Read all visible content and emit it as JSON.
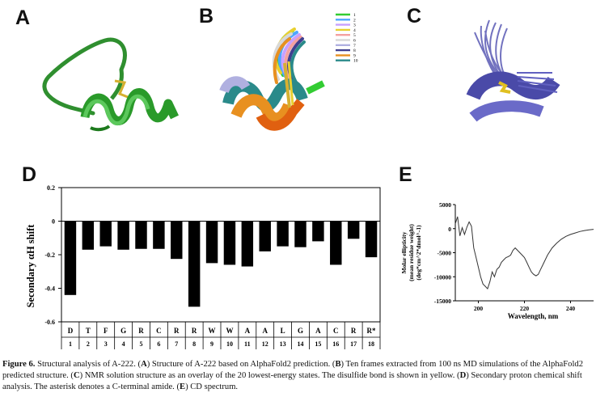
{
  "panels": {
    "a": {
      "letter": "A"
    },
    "b": {
      "letter": "B",
      "legend": [
        "1",
        "2",
        "3",
        "4",
        "5",
        "6",
        "7",
        "8",
        "9",
        "10"
      ],
      "legend_colors": [
        "#33cc33",
        "#4da6ff",
        "#c8a0ff",
        "#e8d030",
        "#f4a0a0",
        "#d8d8d8",
        "#b0b0e0",
        "#404090",
        "#e89020",
        "#2a8a8a"
      ]
    },
    "c": {
      "letter": "C"
    },
    "d": {
      "letter": "D"
    },
    "e": {
      "letter": "E"
    }
  },
  "chart_data": [
    {
      "type": "bar",
      "panel": "D",
      "ylabel": "Secondary αH shift",
      "ylim": [
        -0.6,
        0.2
      ],
      "yticks": [
        "0.2",
        "0",
        "-0.2",
        "-0.4",
        "-0.6"
      ],
      "residues": [
        "D",
        "T",
        "F",
        "G",
        "R",
        "C",
        "R",
        "R",
        "W",
        "W",
        "A",
        "A",
        "L",
        "G",
        "A",
        "C",
        "R",
        "R*"
      ],
      "positions": [
        "1",
        "2",
        "3",
        "4",
        "5",
        "6",
        "7",
        "8",
        "9",
        "10",
        "11",
        "12",
        "13",
        "14",
        "15",
        "16",
        "17",
        "18"
      ],
      "values": [
        -0.44,
        -0.17,
        -0.15,
        -0.17,
        -0.165,
        -0.165,
        -0.225,
        -0.51,
        -0.25,
        -0.26,
        -0.27,
        -0.18,
        -0.15,
        -0.155,
        -0.12,
        -0.26,
        -0.105,
        -0.215
      ],
      "bar_color": "#000000"
    },
    {
      "type": "line",
      "panel": "E",
      "xlabel": "Wavelength, nm",
      "ylabel_lines": [
        "Molar ellipticity",
        "(mean residue weight)",
        "(deg*cm^2*dmol^-1)"
      ],
      "xlim": [
        190,
        250
      ],
      "ylim": [
        -15000,
        5000
      ],
      "xticks": [
        "200",
        "220",
        "240"
      ],
      "yticks": [
        "5000",
        "0",
        "-5000",
        "-10000",
        "-15000"
      ],
      "x": [
        190,
        191,
        192,
        193,
        194,
        195,
        196,
        197,
        198,
        199,
        200,
        201,
        202,
        203,
        204,
        205,
        206,
        207,
        208,
        209,
        210,
        211,
        212,
        213,
        214,
        215,
        216,
        217,
        218,
        219,
        220,
        221,
        222,
        223,
        224,
        225,
        226,
        227,
        228,
        229,
        230,
        232,
        234,
        236,
        238,
        240,
        242,
        244,
        246,
        248,
        250
      ],
      "y": [
        1000,
        2500,
        -1500,
        200,
        -1200,
        300,
        1400,
        500,
        -4000,
        -6000,
        -8000,
        -10000,
        -11500,
        -12000,
        -12500,
        -11000,
        -9000,
        -10000,
        -8500,
        -8000,
        -7000,
        -6500,
        -6000,
        -5800,
        -5500,
        -4500,
        -4000,
        -4500,
        -5000,
        -5500,
        -6000,
        -7000,
        -8000,
        -9000,
        -9500,
        -9800,
        -9500,
        -8500,
        -7500,
        -6500,
        -5500,
        -4000,
        -3000,
        -2200,
        -1600,
        -1200,
        -900,
        -600,
        -400,
        -250,
        -150
      ],
      "line_color": "#333333"
    }
  ],
  "caption": {
    "label": "Figure 6.",
    "segments": [
      {
        "t": " Structural analysis of A-222. (",
        "b": false
      },
      {
        "t": "A",
        "b": true
      },
      {
        "t": ") Structure of A-222 based on AlphaFold2 prediction. (",
        "b": false
      },
      {
        "t": "B",
        "b": true
      },
      {
        "t": ") Ten frames extracted from 100 ns MD simulations of the AlphaFold2 predicted structure. (",
        "b": false
      },
      {
        "t": "C",
        "b": true
      },
      {
        "t": ") NMR solution structure as an overlay of the 20 lowest-energy states. The disulfide bond is shown in yellow. (",
        "b": false
      },
      {
        "t": "D",
        "b": true
      },
      {
        "t": ") Secondary proton chemical shift analysis. The asterisk denotes a C-terminal amide. (",
        "b": false
      },
      {
        "t": "E",
        "b": true
      },
      {
        "t": ") CD spectrum.",
        "b": false
      }
    ]
  }
}
